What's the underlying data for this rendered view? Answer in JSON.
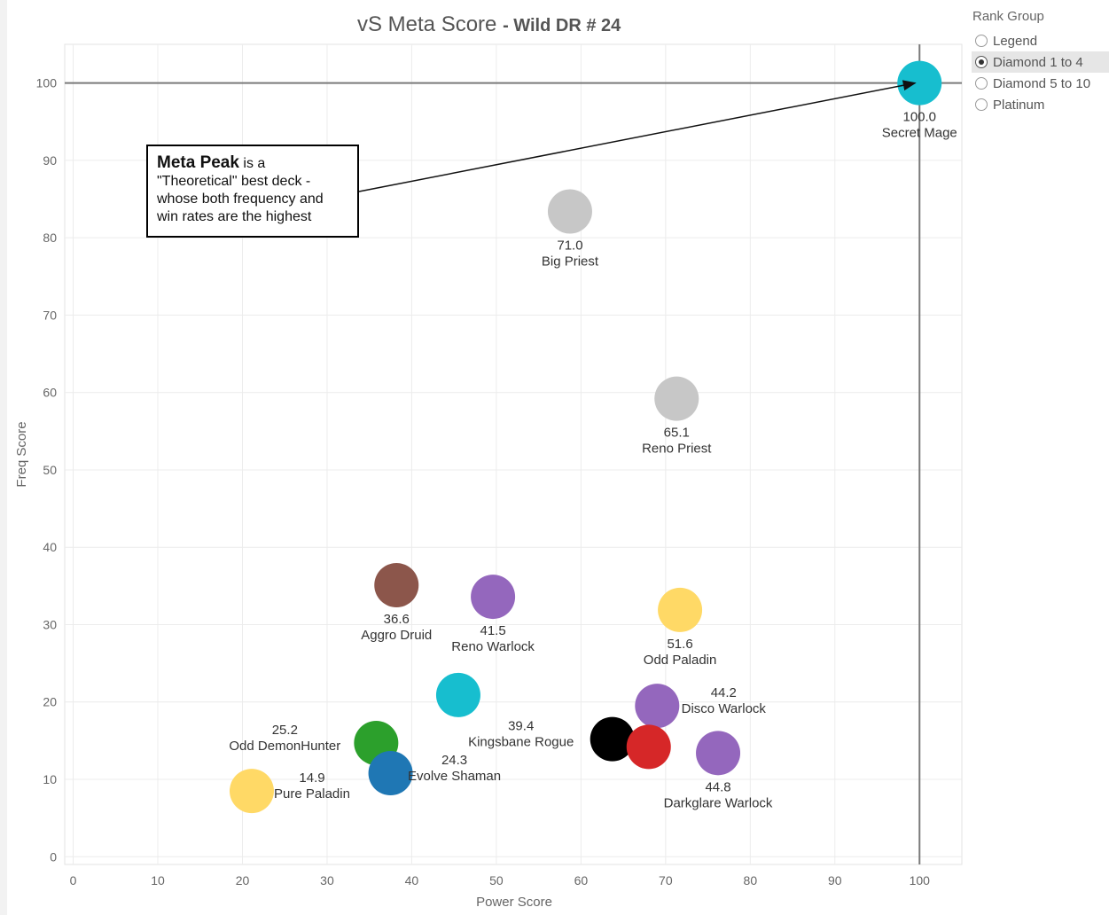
{
  "chart_data": {
    "type": "scatter",
    "title": "vS Meta Score",
    "subtitle": "Wild DR # 24",
    "xlabel": "Power Score",
    "ylabel": "Freq Score",
    "xlim": [
      -1,
      105
    ],
    "ylim": [
      -1,
      105
    ],
    "xticks": [
      0,
      10,
      20,
      30,
      40,
      50,
      60,
      70,
      80,
      90,
      100
    ],
    "yticks": [
      0,
      10,
      20,
      30,
      40,
      50,
      60,
      70,
      80,
      90,
      100
    ],
    "grid": true,
    "reference_lines": {
      "x": 100,
      "y": 100
    },
    "points": [
      {
        "name": "Secret Mage",
        "score": "100.0",
        "x": 100,
        "y": 100,
        "color": "#17becf",
        "label_pos": "below"
      },
      {
        "name": "Big Priest",
        "score": "71.0",
        "x": 58.7,
        "y": 83.4,
        "color": "#c7c7c7",
        "label_pos": "below"
      },
      {
        "name": "Reno Priest",
        "score": "65.1",
        "x": 71.3,
        "y": 59.2,
        "color": "#c7c7c7",
        "label_pos": "below"
      },
      {
        "name": "Odd Paladin",
        "score": "51.6",
        "x": 71.7,
        "y": 31.9,
        "color": "#ffd966",
        "label_pos": "below"
      },
      {
        "name": "Disco Warlock",
        "score": "44.2",
        "x": 69.0,
        "y": 19.5,
        "color": "#9467bd",
        "label_pos": "right"
      },
      {
        "name": "Darkglare Warlock",
        "score": "44.8",
        "x": 76.2,
        "y": 13.4,
        "color": "#9467bd",
        "label_pos": "below"
      },
      {
        "name": "Reno Warlock",
        "score": "41.5",
        "x": 49.6,
        "y": 33.6,
        "color": "#9467bd",
        "label_pos": "below"
      },
      {
        "name": "Kingsbane Rogue",
        "score": "39.4",
        "x": 63.7,
        "y": 15.2,
        "color": "#000000",
        "label_pos": "left"
      },
      {
        "name": "",
        "score": "",
        "x": 68.0,
        "y": 14.2,
        "color": "#d62728",
        "label_pos": "none"
      },
      {
        "name": "Aggro Druid",
        "score": "36.6",
        "x": 38.2,
        "y": 35.1,
        "color": "#8c564b",
        "label_pos": "below"
      },
      {
        "name": "Odd DemonHunter",
        "score": "25.2",
        "x": 35.8,
        "y": 14.7,
        "color": "#2ca02c",
        "label_pos": "left"
      },
      {
        "name": "Evolve Shaman",
        "score": "24.3",
        "x": 37.5,
        "y": 10.8,
        "color": "#1f77b4",
        "label_pos": "right"
      },
      {
        "name": "",
        "score": "",
        "x": 45.5,
        "y": 20.9,
        "color": "#17becf",
        "label_pos": "none"
      },
      {
        "name": "Pure Paladin",
        "score": "14.9",
        "x": 21.1,
        "y": 8.5,
        "color": "#ffd966",
        "label_pos": "right"
      }
    ],
    "annotation": {
      "bold": "Meta Peak",
      "text_1": " is a",
      "text_2": "\"Theoretical\" best deck -",
      "text_3": "whose both frequency and",
      "text_4": "win rates are the highest",
      "points_to": "Secret Mage"
    }
  },
  "legend": {
    "title": "Rank Group",
    "options": [
      "Legend",
      "Diamond 1 to 4",
      "Diamond 5 to 10",
      "Platinum"
    ],
    "selected": 1
  }
}
